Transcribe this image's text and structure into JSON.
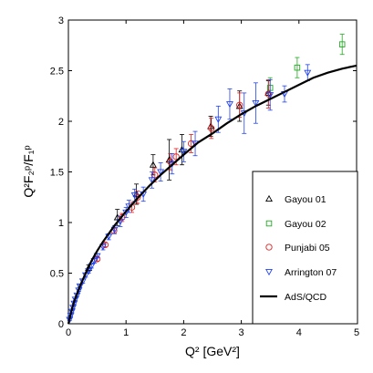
{
  "chart_data": {
    "type": "scatter",
    "xlim": [
      0,
      5
    ],
    "ylim": [
      0,
      3
    ],
    "x_ticks": [
      "0",
      "1",
      "2",
      "3",
      "4",
      "5"
    ],
    "y_ticks": [
      "0",
      "0.5",
      "1",
      "1.5",
      "2",
      "2.5",
      "3"
    ],
    "xlabel": "Q² [GeV²]",
    "ylabel": "Q²F₂ᵖ/F₁ᵖ",
    "legend": {
      "position": "bottom-right"
    },
    "series": [
      {
        "name": "Gayou 01",
        "marker": "triangle-up",
        "color": "#000000",
        "points": [
          [
            0.35,
            0.55,
            0.03
          ],
          [
            0.85,
            1.05,
            0.08
          ],
          [
            1.18,
            1.28,
            0.1
          ],
          [
            1.47,
            1.57,
            0.1
          ],
          [
            1.75,
            1.62,
            0.2
          ],
          [
            1.97,
            1.72,
            0.15
          ],
          [
            2.47,
            1.95,
            0.1
          ],
          [
            2.97,
            2.15,
            0.15
          ],
          [
            3.47,
            2.28,
            0.12
          ]
        ]
      },
      {
        "name": "Gayou 02",
        "marker": "square",
        "color": "#22aa22",
        "points": [
          [
            3.5,
            2.33,
            0.1
          ],
          [
            3.97,
            2.53,
            0.1
          ],
          [
            4.75,
            2.76,
            0.1
          ]
        ]
      },
      {
        "name": "Punjabi 05",
        "marker": "circle",
        "color": "#e02020",
        "points": [
          [
            0.5,
            0.64,
            0.02
          ],
          [
            0.64,
            0.78,
            0.02
          ],
          [
            0.79,
            0.92,
            0.03
          ],
          [
            0.93,
            1.05,
            0.04
          ],
          [
            1.1,
            1.15,
            0.05
          ],
          [
            1.2,
            1.25,
            0.06
          ],
          [
            1.5,
            1.47,
            0.07
          ],
          [
            1.77,
            1.6,
            0.08
          ],
          [
            1.87,
            1.65,
            0.08
          ],
          [
            2.13,
            1.78,
            0.09
          ],
          [
            2.48,
            1.93,
            0.1
          ],
          [
            2.97,
            2.16,
            0.12
          ],
          [
            3.47,
            2.27,
            0.14
          ]
        ]
      },
      {
        "name": "Arrington 07",
        "marker": "triangle-down",
        "color": "#2244ee",
        "points": [
          [
            0.02,
            0.04,
            0.01
          ],
          [
            0.04,
            0.08,
            0.01
          ],
          [
            0.06,
            0.12,
            0.01
          ],
          [
            0.08,
            0.16,
            0.01
          ],
          [
            0.1,
            0.2,
            0.01
          ],
          [
            0.12,
            0.24,
            0.01
          ],
          [
            0.15,
            0.28,
            0.01
          ],
          [
            0.18,
            0.33,
            0.01
          ],
          [
            0.2,
            0.37,
            0.01
          ],
          [
            0.25,
            0.42,
            0.02
          ],
          [
            0.3,
            0.48,
            0.02
          ],
          [
            0.35,
            0.52,
            0.02
          ],
          [
            0.4,
            0.57,
            0.02
          ],
          [
            0.45,
            0.62,
            0.02
          ],
          [
            0.5,
            0.67,
            0.02
          ],
          [
            0.6,
            0.76,
            0.03
          ],
          [
            0.7,
            0.86,
            0.03
          ],
          [
            0.8,
            0.93,
            0.04
          ],
          [
            0.9,
            1.01,
            0.05
          ],
          [
            1.0,
            1.1,
            0.05
          ],
          [
            1.05,
            1.16,
            0.06
          ],
          [
            1.15,
            1.27,
            0.06
          ],
          [
            1.3,
            1.28,
            0.07
          ],
          [
            1.45,
            1.42,
            0.08
          ],
          [
            1.6,
            1.5,
            0.09
          ],
          [
            1.8,
            1.58,
            0.1
          ],
          [
            2.0,
            1.7,
            0.1
          ],
          [
            2.2,
            1.78,
            0.12
          ],
          [
            2.6,
            2.02,
            0.13
          ],
          [
            2.8,
            2.17,
            0.15
          ],
          [
            3.05,
            2.08,
            0.2
          ],
          [
            3.25,
            2.18,
            0.2
          ],
          [
            3.5,
            2.26,
            0.15
          ],
          [
            3.75,
            2.27,
            0.08
          ],
          [
            4.15,
            2.48,
            0.08
          ]
        ]
      },
      {
        "name": "AdS/QCD",
        "type": "line",
        "color": "#000000",
        "points": [
          [
            0,
            0
          ],
          [
            0.05,
            0.12
          ],
          [
            0.1,
            0.22
          ],
          [
            0.2,
            0.37
          ],
          [
            0.3,
            0.5
          ],
          [
            0.4,
            0.62
          ],
          [
            0.5,
            0.72
          ],
          [
            0.6,
            0.81
          ],
          [
            0.7,
            0.89
          ],
          [
            0.8,
            0.97
          ],
          [
            0.9,
            1.04
          ],
          [
            1.0,
            1.11
          ],
          [
            1.2,
            1.24
          ],
          [
            1.4,
            1.36
          ],
          [
            1.6,
            1.47
          ],
          [
            1.8,
            1.57
          ],
          [
            2.0,
            1.67
          ],
          [
            2.25,
            1.79
          ],
          [
            2.5,
            1.88
          ],
          [
            2.75,
            1.98
          ],
          [
            3.0,
            2.07
          ],
          [
            3.25,
            2.15
          ],
          [
            3.5,
            2.22
          ],
          [
            3.75,
            2.29
          ],
          [
            4.0,
            2.36
          ],
          [
            4.25,
            2.43
          ],
          [
            4.5,
            2.48
          ],
          [
            4.75,
            2.52
          ],
          [
            5.0,
            2.55
          ]
        ]
      }
    ]
  }
}
